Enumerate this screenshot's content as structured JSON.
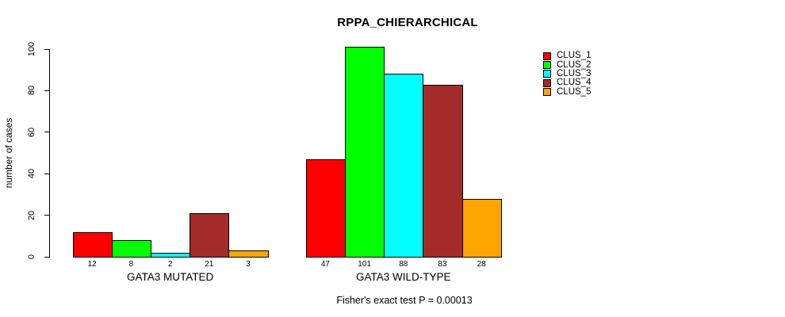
{
  "chart_data": {
    "type": "bar",
    "title": "RPPA_CHIERARCHICAL",
    "ylabel": "number of cases",
    "xlabel": "",
    "ylim": [
      0,
      100
    ],
    "yticks": [
      0,
      20,
      40,
      60,
      80,
      100
    ],
    "grid": false,
    "categories": [
      "GATA3 MUTATED",
      "GATA3 WILD-TYPE"
    ],
    "series": [
      {
        "name": "CLUS_1",
        "color": "#FF0000",
        "values": [
          12,
          47
        ]
      },
      {
        "name": "CLUS_2",
        "color": "#00FF00",
        "values": [
          8,
          101
        ]
      },
      {
        "name": "CLUS_3",
        "color": "#00FFFF",
        "values": [
          2,
          88
        ]
      },
      {
        "name": "CLUS_4",
        "color": "#A52A2A",
        "values": [
          21,
          83
        ]
      },
      {
        "name": "CLUS_5",
        "color": "#FFA500",
        "values": [
          3,
          28
        ]
      }
    ],
    "bar_value_labels": [
      [
        "12",
        "8",
        "2",
        "21",
        "3"
      ],
      [
        "47",
        "101",
        "88",
        "83",
        "28"
      ]
    ],
    "legend": {
      "position": "right",
      "entries": [
        "CLUS_1",
        "CLUS_2",
        "CLUS_3",
        "CLUS_4",
        "CLUS_5"
      ]
    },
    "annotation": "Fisher's exact test P = 0.00013",
    "axis_color": "#000000",
    "background_color": "#FFFFFF"
  }
}
